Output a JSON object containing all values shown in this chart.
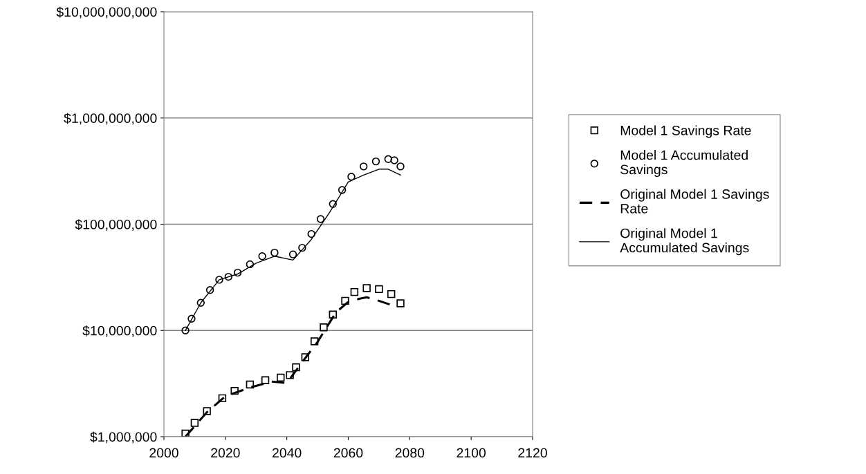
{
  "chart_data": {
    "type": "line",
    "log": "y",
    "grid": "y",
    "legend": "right",
    "xlim": [
      2000,
      2120
    ],
    "xticks": [
      2000,
      2020,
      2040,
      2060,
      2080,
      2100,
      2120
    ],
    "ylim": [
      1000000,
      10000000000
    ],
    "yticks": [
      {
        "value": 1000000,
        "label": "$1,000,000"
      },
      {
        "value": 10000000,
        "label": "$10,000,000"
      },
      {
        "value": 100000000,
        "label": "$100,000,000"
      },
      {
        "value": 1000000000,
        "label": "$1,000,000,000"
      },
      {
        "value": 10000000000,
        "label": "$10,000,000,000"
      }
    ],
    "series": [
      {
        "name": "Model 1 Savings Rate",
        "type": "scatter",
        "marker": "square",
        "color": "#000000",
        "x": [
          2007,
          2010,
          2014,
          2019,
          2023,
          2028,
          2033,
          2038,
          2041,
          2043,
          2046,
          2049,
          2052,
          2055,
          2059,
          2062,
          2066,
          2070,
          2074,
          2077
        ],
        "values": [
          1070000,
          1350000,
          1740000,
          2300000,
          2700000,
          3100000,
          3400000,
          3600000,
          3800000,
          4500000,
          5600000,
          7900000,
          10700000,
          14100000,
          19000000,
          23000000,
          25000000,
          24500000,
          22000000,
          18000000
        ]
      },
      {
        "name": "Model 1 Accumulated Savings",
        "type": "scatter",
        "marker": "circle",
        "color": "#000000",
        "x": [
          2007,
          2009,
          2012,
          2015,
          2018,
          2021,
          2024,
          2028,
          2032,
          2036,
          2042,
          2045,
          2048,
          2051,
          2055,
          2058,
          2061,
          2065,
          2069,
          2073,
          2075,
          2077
        ],
        "values": [
          10000000,
          12900000,
          18200000,
          24000000,
          30000000,
          32000000,
          35000000,
          42000000,
          50000000,
          54000000,
          52000000,
          60000000,
          81000000,
          112000000,
          155000000,
          210000000,
          280000000,
          350000000,
          390000000,
          410000000,
          400000000,
          350000000
        ]
      },
      {
        "name": "Original Model 1 Savings Rate",
        "line_style": "dashed",
        "color": "#000000",
        "x": [
          2007,
          2014,
          2020,
          2028,
          2035,
          2040,
          2044,
          2050,
          2056,
          2060,
          2064,
          2066,
          2070,
          2076
        ],
        "values": [
          1000000,
          1700000,
          2400000,
          2900000,
          3300000,
          3200000,
          4600000,
          7800000,
          14800000,
          18600000,
          20000000,
          20500000,
          19000000,
          16600000
        ]
      },
      {
        "name": "Original Model 1 Accumulated Savings",
        "line_style": "solid",
        "color": "#000000",
        "x": [
          2007,
          2012,
          2018,
          2024,
          2030,
          2036,
          2042,
          2048,
          2054,
          2060,
          2065,
          2070,
          2073,
          2077
        ],
        "values": [
          10000000,
          18200000,
          30000000,
          34000000,
          43000000,
          50000000,
          46000000,
          72000000,
          130000000,
          250000000,
          290000000,
          330000000,
          330000000,
          290000000
        ]
      }
    ]
  }
}
